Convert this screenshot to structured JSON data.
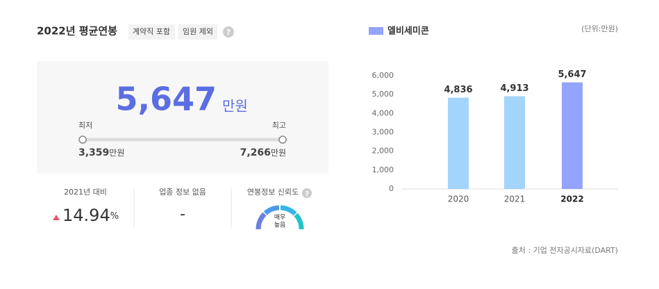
{
  "summary": {
    "title": "2022년 평균연봉",
    "tags": [
      "계약직 포함",
      "임원 제외"
    ],
    "help_icon": "?",
    "average": {
      "value": "5,647",
      "unit": "만원"
    },
    "min": {
      "label": "최저",
      "value": "3,359",
      "unit": "만원"
    },
    "max": {
      "label": "최고",
      "value": "7,266",
      "unit": "만원"
    }
  },
  "stats": [
    {
      "label": "2021년 대비",
      "value": "14.94",
      "unit": "%"
    },
    {
      "label": "업종 정보 없음",
      "value": "-"
    },
    {
      "label": "연봉정보 신뢰도",
      "gauge": [
        "매우",
        "높음"
      ]
    }
  ],
  "chart_data": {
    "type": "bar",
    "legend": "엘비세미콘",
    "legend_color": "#94a3fb",
    "unit_note": "(단위:만원)",
    "categories": [
      "2020",
      "2021",
      "2022"
    ],
    "values": [
      4836,
      4913,
      5647
    ],
    "value_labels": [
      "4,836",
      "4,913",
      "5,647"
    ],
    "colors": [
      "#a3d4fb",
      "#a3d4fb",
      "#94a3fb"
    ],
    "ylim": [
      0,
      6000
    ],
    "yticks": [
      0,
      {
        "value": 1000,
        "label": "1,000"
      },
      {
        "value": 2000,
        "label": "2,000"
      },
      {
        "value": 3000,
        "label": "3,000"
      },
      {
        "value": 4000,
        "label": "4,000"
      },
      {
        "value": 5000,
        "label": "5,000"
      },
      {
        "value": 6000,
        "label": "6,000"
      }
    ],
    "grid": false
  },
  "source": "출처 : 기업 전자공시자료(DART)"
}
